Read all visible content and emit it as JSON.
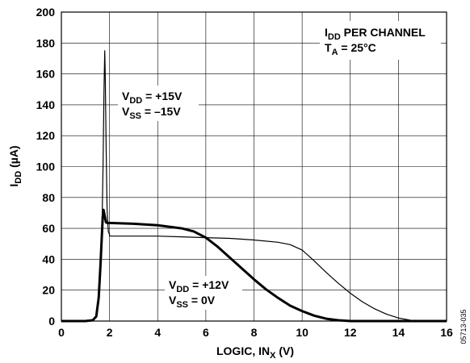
{
  "chart_data": {
    "type": "line",
    "xlabel": "LOGIC, IN",
    "xlabel_sub": "X",
    "xlabel_unit": " (V)",
    "ylabel": "I",
    "ylabel_sub": "DD",
    "ylabel_unit": " (µA)",
    "xlim": [
      0,
      16
    ],
    "ylim": [
      0,
      200
    ],
    "xticks": [
      0,
      2,
      4,
      6,
      8,
      10,
      12,
      14,
      16
    ],
    "yticks": [
      0,
      20,
      40,
      60,
      80,
      100,
      120,
      140,
      160,
      180,
      200
    ],
    "grid": true,
    "series": [
      {
        "supply": "VDD = +15V, VSS = −15V",
        "line_weight": "thin",
        "points": [
          [
            0,
            0
          ],
          [
            1.0,
            0
          ],
          [
            1.3,
            0.5
          ],
          [
            1.45,
            3
          ],
          [
            1.55,
            12
          ],
          [
            1.62,
            28
          ],
          [
            1.68,
            55
          ],
          [
            1.73,
            100
          ],
          [
            1.77,
            150
          ],
          [
            1.8,
            175
          ],
          [
            1.82,
            160
          ],
          [
            1.86,
            110
          ],
          [
            1.9,
            72
          ],
          [
            1.95,
            58
          ],
          [
            2.0,
            56
          ],
          [
            2.0,
            55
          ],
          [
            3.0,
            55
          ],
          [
            4.0,
            55
          ],
          [
            5.0,
            54.5
          ],
          [
            6.0,
            54
          ],
          [
            7.0,
            53.5
          ],
          [
            8.0,
            52.5
          ],
          [
            9.0,
            51
          ],
          [
            9.5,
            49.5
          ],
          [
            10.0,
            46
          ],
          [
            10.5,
            39
          ],
          [
            11.0,
            31.5
          ],
          [
            11.5,
            24.5
          ],
          [
            12.0,
            18
          ],
          [
            12.5,
            12.5
          ],
          [
            13.0,
            8
          ],
          [
            13.5,
            4.5
          ],
          [
            14.0,
            2
          ],
          [
            14.5,
            0.5
          ],
          [
            15.0,
            0
          ],
          [
            16.0,
            0
          ]
        ]
      },
      {
        "supply": "VDD = +12V, VSS = 0V",
        "line_weight": "thick",
        "points": [
          [
            0,
            0
          ],
          [
            1.0,
            0
          ],
          [
            1.3,
            0.5
          ],
          [
            1.45,
            3
          ],
          [
            1.55,
            15
          ],
          [
            1.62,
            35
          ],
          [
            1.68,
            55
          ],
          [
            1.72,
            68
          ],
          [
            1.75,
            72
          ],
          [
            1.8,
            68
          ],
          [
            1.85,
            64
          ],
          [
            1.9,
            63.5
          ],
          [
            2.0,
            63.5
          ],
          [
            3.0,
            63
          ],
          [
            4.0,
            62
          ],
          [
            5.0,
            60
          ],
          [
            5.5,
            58
          ],
          [
            6.0,
            54
          ],
          [
            6.5,
            48
          ],
          [
            7.0,
            41
          ],
          [
            7.5,
            34
          ],
          [
            8.0,
            27
          ],
          [
            8.5,
            20.5
          ],
          [
            9.0,
            15
          ],
          [
            9.5,
            10
          ],
          [
            10.0,
            6.5
          ],
          [
            10.5,
            3.5
          ],
          [
            11.0,
            1.5
          ],
          [
            11.5,
            0.5
          ],
          [
            12.0,
            0
          ],
          [
            16.0,
            0
          ]
        ]
      }
    ],
    "annotations": {
      "top_right": {
        "line1_main": "I",
        "line1_sub": "DD",
        "line1_rest": " PER CHANNEL",
        "line2_main": "T",
        "line2_sub": "A",
        "line2_rest": " = 25°C"
      },
      "upper_label": {
        "l1_main": "V",
        "l1_sub": "DD",
        "l1_rest": " = +15V",
        "l2_main": "V",
        "l2_sub": "SS",
        "l2_rest": " = –15V"
      },
      "lower_label": {
        "l1_main": "V",
        "l1_sub": "DD",
        "l1_rest": " = +12V",
        "l2_main": "V",
        "l2_sub": "SS",
        "l2_rest": " = 0V"
      }
    },
    "figure_id": "05713-035"
  }
}
